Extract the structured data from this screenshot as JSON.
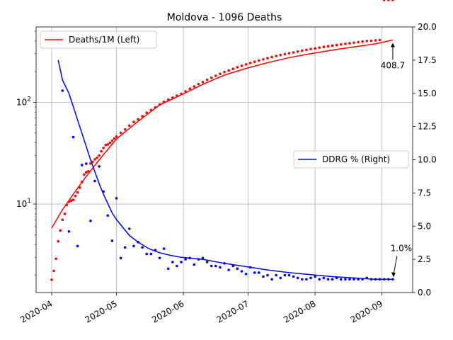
{
  "chart_data": {
    "type": "line",
    "title": "Moldova - 1096 Deaths",
    "xlabel": "",
    "ylabel_left": "",
    "ylabel_right": "",
    "x_tick_labels": [
      "2020-04",
      "2020-05",
      "2020-06",
      "2020-07",
      "2020-08",
      "2020-09"
    ],
    "x_tick_days": [
      0,
      30,
      61,
      91,
      122,
      153
    ],
    "xlim_days": [
      0,
      160
    ],
    "left_axis": {
      "scale": "log",
      "ylim": [
        1.35,
        550
      ],
      "major_ticks": [
        10,
        100
      ],
      "major_tick_labels": [
        "10$^{1}$",
        "10$^{2}$"
      ],
      "major_tick_labels_display": [
        "10",
        "10"
      ],
      "major_tick_exponents": [
        "1",
        "2"
      ]
    },
    "right_axis": {
      "scale": "linear",
      "ylim": [
        0,
        20
      ],
      "ticks": [
        0,
        2.5,
        5,
        7.5,
        10,
        12.5,
        15,
        17.5,
        20
      ],
      "tick_labels": [
        "0.0",
        "2.5",
        "5.0",
        "7.5",
        "10.0",
        "12.5",
        "15.0",
        "17.5",
        "20.0"
      ]
    },
    "grid": true,
    "series": [
      {
        "name": "Deaths/1M (Left)",
        "axis": "left",
        "color": "#ff0000",
        "style": "dots+line",
        "points_day": [
          0,
          1,
          2,
          3,
          4,
          5,
          6,
          7,
          8,
          9,
          10,
          11,
          12,
          13,
          14,
          15,
          16,
          17,
          18,
          19,
          20,
          21,
          22,
          23,
          24,
          25,
          26,
          27,
          28,
          29,
          30,
          32,
          34,
          36,
          38,
          40,
          42,
          44,
          46,
          48,
          50,
          52,
          54,
          56,
          58,
          60,
          62,
          64,
          66,
          68,
          70,
          72,
          74,
          76,
          78,
          80,
          82,
          84,
          86,
          88,
          90,
          92,
          94,
          96,
          98,
          100,
          102,
          104,
          106,
          108,
          110,
          112,
          114,
          116,
          118,
          120,
          122,
          124,
          126,
          128,
          130,
          132,
          134,
          136,
          138,
          140,
          142,
          144,
          146,
          148,
          150,
          152,
          154,
          156,
          158
        ],
        "points_value": [
          1.8,
          2.2,
          2.9,
          4.3,
          5.5,
          7.0,
          8.0,
          9.8,
          10.5,
          10.8,
          11.0,
          12.0,
          13.0,
          14.5,
          16.5,
          19.5,
          20.5,
          21.0,
          25.0,
          26.0,
          27.5,
          28.5,
          30.0,
          33.0,
          35.5,
          38.0,
          38.5,
          40.0,
          42.0,
          44.0,
          46.0,
          50.0,
          54.0,
          59.0,
          64.0,
          68.0,
          73.0,
          79.0,
          84.0,
          89.0,
          95.0,
          101.0,
          106.0,
          111.0,
          116.0,
          121.0,
          128.0,
          136.0,
          143.0,
          151.0,
          158.0,
          166.0,
          174.0,
          182.0,
          190.0,
          198.0,
          205.0,
          213.0,
          221.0,
          228.0,
          236.0,
          243.0,
          250.0,
          257.0,
          264.0,
          271.0,
          278.0,
          285.0,
          291.0,
          297.0,
          303.0,
          309.0,
          315.0,
          321.0,
          327.0,
          333.0,
          338.0,
          344.0,
          350.0,
          355.0,
          360.0,
          365.0,
          370.0,
          375.0,
          380.0,
          385.0,
          390.0,
          395.0,
          399.0,
          402.0,
          405.0,
          408.7
        ],
        "line_day": [
          0,
          5,
          10,
          15,
          20,
          25,
          30,
          40,
          50,
          60,
          70,
          80,
          90,
          100,
          110,
          120,
          130,
          140,
          150,
          158
        ],
        "line_value": [
          5.8,
          8.8,
          12.5,
          17.5,
          24.0,
          32.5,
          43.5,
          65.0,
          94.0,
          118.0,
          150.0,
          185.0,
          215.0,
          245.0,
          275.0,
          300.0,
          325.0,
          350.0,
          375.0,
          408.7
        ]
      },
      {
        "name": "DDRG % (Right)",
        "axis": "right",
        "color": "#0000ff",
        "style": "dots+line",
        "points_day": [
          5,
          8,
          10,
          12,
          14,
          16,
          18,
          20,
          22,
          24,
          26,
          28,
          30,
          32,
          34,
          36,
          38,
          40,
          42,
          44,
          46,
          48,
          50,
          52,
          54,
          56,
          58,
          60,
          62,
          64,
          66,
          68,
          70,
          72,
          74,
          76,
          78,
          80,
          82,
          84,
          86,
          88,
          90,
          92,
          94,
          96,
          98,
          100,
          102,
          104,
          106,
          108,
          110,
          112,
          114,
          116,
          118,
          120,
          122,
          124,
          126,
          128,
          130,
          132,
          134,
          136,
          138,
          140,
          142,
          144,
          146,
          148,
          150,
          152,
          154,
          156,
          158
        ],
        "points_value": [
          15.2,
          4.6,
          11.7,
          3.5,
          9.6,
          9.7,
          5.4,
          8.4,
          9.5,
          7.6,
          5.8,
          3.9,
          7.1,
          2.6,
          3.4,
          4.8,
          3.5,
          3.8,
          3.4,
          2.9,
          2.9,
          3.2,
          2.6,
          3.3,
          1.8,
          2.3,
          2.0,
          2.3,
          2.5,
          2.6,
          2.1,
          2.5,
          2.6,
          2.3,
          2.0,
          2.0,
          1.9,
          2.2,
          1.7,
          2.0,
          1.8,
          1.6,
          1.4,
          1.9,
          1.5,
          1.5,
          1.2,
          1.3,
          1.0,
          1.3,
          1.1,
          1.3,
          1.3,
          1.2,
          1.1,
          1.0,
          1.0,
          1.1,
          1.2,
          1.0,
          1.1,
          1.0,
          1.0,
          1.1,
          1.0,
          1.0,
          1.0,
          1.0,
          1.0,
          1.0,
          1.1,
          1.0,
          1.0,
          1.0,
          1.0,
          1.0,
          1.0
        ],
        "line_day": [
          3,
          5,
          8,
          10,
          12,
          14,
          16,
          18,
          20,
          22,
          24,
          26,
          28,
          30,
          33,
          36,
          40,
          45,
          50,
          55,
          60,
          70,
          80,
          90,
          100,
          110,
          120,
          130,
          140,
          150,
          158
        ],
        "line_value": [
          17.5,
          16.0,
          15.0,
          14.0,
          13.0,
          12.0,
          11.0,
          10.0,
          9.1,
          8.2,
          7.4,
          6.7,
          6.0,
          5.5,
          4.9,
          4.3,
          3.8,
          3.3,
          3.0,
          2.8,
          2.65,
          2.5,
          2.2,
          1.95,
          1.7,
          1.5,
          1.35,
          1.2,
          1.1,
          1.0,
          1.0
        ]
      }
    ],
    "annotations": [
      {
        "text": "408.7",
        "series": "Deaths/1M (Left)"
      },
      {
        "text": "1.0%",
        "series": "DDRG % (Right)"
      }
    ],
    "legends": [
      {
        "placement": "upper-left",
        "entries": [
          "Deaths/1M (Left)"
        ]
      },
      {
        "placement": "center-right",
        "entries": [
          "DDRG % (Right)"
        ]
      }
    ]
  }
}
